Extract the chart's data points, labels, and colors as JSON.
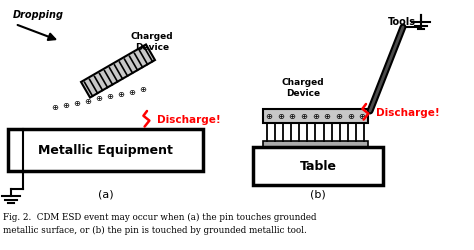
{
  "fig_width": 4.74,
  "fig_height": 2.51,
  "dpi": 100,
  "bg_color": "#ffffff",
  "caption_line1": "Fig. 2.  CDM ESD event may occur when (a) the pin touches grounded",
  "caption_line2": "metallic surface, or (b) the pin is touched by grounded metallic tool.",
  "label_a": "(a)",
  "label_b": "(b)",
  "discharge_color": "#ff0000",
  "black": "#000000",
  "chip_gray": "#aaaaaa",
  "chip_body_gray": "#c8c8c8"
}
